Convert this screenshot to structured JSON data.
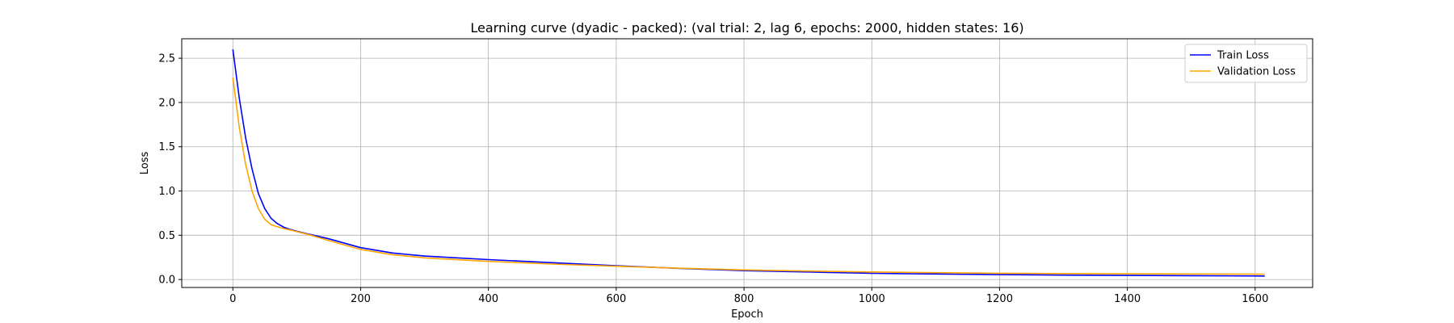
{
  "chart_data": {
    "type": "line",
    "title": "Learning curve (dyadic - packed): (val trial: 2, lag 6, epochs: 2000, hidden states: 16)",
    "xlabel": "Epoch",
    "ylabel": "Loss",
    "xlim": [
      -80,
      1690
    ],
    "ylim": [
      -0.09,
      2.72
    ],
    "xticks": [
      0,
      200,
      400,
      600,
      800,
      1000,
      1200,
      1400,
      1600
    ],
    "yticks": [
      0.0,
      0.5,
      1.0,
      1.5,
      2.0,
      2.5
    ],
    "grid": true,
    "legend_position": "top-right",
    "series": [
      {
        "name": "Train Loss",
        "color": "#0000ff",
        "x": [
          0,
          10,
          20,
          30,
          40,
          50,
          60,
          70,
          80,
          90,
          100,
          120,
          150,
          200,
          250,
          300,
          400,
          500,
          600,
          700,
          800,
          900,
          1000,
          1100,
          1200,
          1300,
          1400,
          1500,
          1615
        ],
        "y": [
          2.6,
          2.05,
          1.6,
          1.25,
          0.97,
          0.8,
          0.69,
          0.63,
          0.59,
          0.565,
          0.545,
          0.51,
          0.46,
          0.36,
          0.3,
          0.265,
          0.225,
          0.19,
          0.155,
          0.125,
          0.1,
          0.085,
          0.07,
          0.062,
          0.055,
          0.05,
          0.046,
          0.043,
          0.04
        ]
      },
      {
        "name": "Validation Loss",
        "color": "#ffa500",
        "x": [
          0,
          10,
          20,
          30,
          40,
          50,
          60,
          70,
          80,
          90,
          100,
          120,
          150,
          200,
          250,
          300,
          400,
          500,
          600,
          700,
          800,
          900,
          1000,
          1100,
          1200,
          1300,
          1400,
          1500,
          1615
        ],
        "y": [
          2.28,
          1.72,
          1.3,
          1.0,
          0.8,
          0.68,
          0.62,
          0.595,
          0.575,
          0.56,
          0.54,
          0.505,
          0.44,
          0.34,
          0.28,
          0.245,
          0.205,
          0.175,
          0.15,
          0.127,
          0.108,
          0.095,
          0.085,
          0.077,
          0.071,
          0.067,
          0.064,
          0.062,
          0.06
        ]
      }
    ]
  }
}
